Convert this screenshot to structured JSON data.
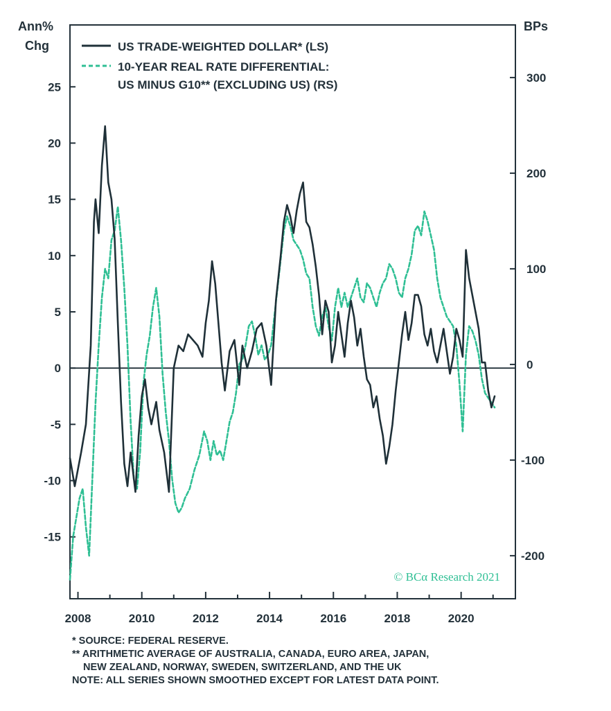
{
  "chart_data": {
    "type": "line",
    "left_axis": {
      "title_line1": "Ann%",
      "title_line2": "Chg",
      "range": [
        -20.5,
        30.5
      ],
      "ticks": [
        25,
        20,
        15,
        10,
        5,
        0,
        -5,
        -10,
        -15
      ]
    },
    "right_axis": {
      "title": "BPs",
      "range": [
        -245,
        355
      ],
      "ticks": [
        300,
        200,
        100,
        0,
        -100,
        -200
      ]
    },
    "x_axis": {
      "range": [
        2007.75,
        2021.7
      ],
      "ticks": [
        2008,
        2010,
        2012,
        2014,
        2016,
        2018,
        2020
      ]
    },
    "zero_line": true,
    "grid": false,
    "legend": {
      "position": "top-left",
      "line1": "US TRADE-WEIGHTED DOLLAR* (LS)",
      "line2a": "10-YEAR REAL RATE DIFFERENTIAL:",
      "line2b": "US MINUS G10** (EXCLUDING US) (RS)"
    },
    "credit": "© BCα Research 2021",
    "series": [
      {
        "name": "US TRADE-WEIGHTED DOLLAR* (LS)",
        "axis": "left",
        "color": "#1f3038",
        "style": "solid",
        "x": [
          2007.75,
          2007.9,
          2008.0,
          2008.1,
          2008.25,
          2008.4,
          2008.5,
          2008.55,
          2008.65,
          2008.75,
          2008.85,
          2008.95,
          2009.05,
          2009.15,
          2009.25,
          2009.35,
          2009.45,
          2009.55,
          2009.65,
          2009.8,
          2009.9,
          2010.0,
          2010.1,
          2010.2,
          2010.3,
          2010.45,
          2010.55,
          2010.7,
          2010.85,
          2011.0,
          2011.15,
          2011.3,
          2011.45,
          2011.6,
          2011.75,
          2011.9,
          2012.0,
          2012.1,
          2012.2,
          2012.3,
          2012.4,
          2012.5,
          2012.6,
          2012.75,
          2012.9,
          2013.05,
          2013.15,
          2013.3,
          2013.45,
          2013.6,
          2013.75,
          2013.9,
          2014.05,
          2014.2,
          2014.35,
          2014.45,
          2014.55,
          2014.65,
          2014.75,
          2014.85,
          2014.95,
          2015.05,
          2015.15,
          2015.25,
          2015.35,
          2015.45,
          2015.55,
          2015.65,
          2015.75,
          2015.85,
          2015.95,
          2016.05,
          2016.15,
          2016.25,
          2016.35,
          2016.45,
          2016.55,
          2016.65,
          2016.75,
          2016.85,
          2016.95,
          2017.05,
          2017.15,
          2017.25,
          2017.35,
          2017.45,
          2017.55,
          2017.65,
          2017.75,
          2017.85,
          2017.95,
          2018.05,
          2018.15,
          2018.25,
          2018.35,
          2018.45,
          2018.55,
          2018.65,
          2018.75,
          2018.85,
          2018.95,
          2019.05,
          2019.15,
          2019.25,
          2019.35,
          2019.45,
          2019.55,
          2019.65,
          2019.75,
          2019.85,
          2019.95,
          2020.05,
          2020.15,
          2020.25,
          2020.35,
          2020.45,
          2020.55,
          2020.65,
          2020.75,
          2020.85,
          2020.95,
          2021.05
        ],
        "y": [
          -8.0,
          -10.5,
          -9.0,
          -7.5,
          -5.0,
          2.0,
          13.0,
          15.0,
          12.0,
          18.0,
          21.5,
          16.5,
          15.0,
          11.5,
          4.0,
          -3.0,
          -8.5,
          -10.5,
          -7.5,
          -11.0,
          -6.0,
          -2.5,
          -1.0,
          -3.5,
          -5.0,
          -3.0,
          -5.5,
          -7.5,
          -11.0,
          0.0,
          2.0,
          1.5,
          3.0,
          2.5,
          2.0,
          1.0,
          4.0,
          6.0,
          9.5,
          7.5,
          4.0,
          0.5,
          -2.0,
          1.5,
          2.5,
          -1.5,
          2.0,
          0.0,
          1.5,
          3.5,
          4.0,
          2.0,
          -1.5,
          6.0,
          10.0,
          13.0,
          14.5,
          13.5,
          12.0,
          14.0,
          15.5,
          16.5,
          13.0,
          12.5,
          11.0,
          9.0,
          6.5,
          3.0,
          6.0,
          5.0,
          0.5,
          2.0,
          5.0,
          3.0,
          1.0,
          4.0,
          6.0,
          4.5,
          2.0,
          3.5,
          1.0,
          -1.0,
          -1.5,
          -3.5,
          -2.5,
          -4.5,
          -6.0,
          -8.5,
          -7.0,
          -5.0,
          -2.0,
          0.5,
          3.0,
          5.0,
          2.5,
          4.0,
          6.5,
          6.5,
          5.5,
          3.0,
          2.0,
          3.5,
          1.5,
          0.5,
          2.0,
          3.5,
          1.5,
          -0.5,
          1.0,
          3.5,
          2.5,
          1.0,
          10.5,
          8.0,
          6.5,
          5.0,
          3.5,
          0.5,
          0.5,
          -2.0,
          -3.5,
          -2.5
        ]
      },
      {
        "name": "10-YEAR REAL RATE DIFFERENTIAL: US MINUS G10** (EXCLUDING US) (RS)",
        "axis": "right",
        "color": "#2fbf94",
        "style": "dashed",
        "x": [
          2007.75,
          2007.85,
          2007.95,
          2008.05,
          2008.15,
          2008.25,
          2008.35,
          2008.45,
          2008.55,
          2008.65,
          2008.75,
          2008.85,
          2008.95,
          2009.05,
          2009.15,
          2009.25,
          2009.35,
          2009.45,
          2009.55,
          2009.65,
          2009.75,
          2009.85,
          2009.95,
          2010.05,
          2010.15,
          2010.25,
          2010.35,
          2010.45,
          2010.55,
          2010.65,
          2010.75,
          2010.85,
          2010.95,
          2011.05,
          2011.15,
          2011.25,
          2011.35,
          2011.5,
          2011.65,
          2011.8,
          2011.95,
          2012.05,
          2012.15,
          2012.25,
          2012.35,
          2012.45,
          2012.55,
          2012.65,
          2012.75,
          2012.85,
          2012.95,
          2013.05,
          2013.15,
          2013.25,
          2013.35,
          2013.45,
          2013.55,
          2013.65,
          2013.75,
          2013.85,
          2013.95,
          2014.05,
          2014.15,
          2014.25,
          2014.35,
          2014.45,
          2014.55,
          2014.65,
          2014.75,
          2014.85,
          2014.95,
          2015.05,
          2015.15,
          2015.25,
          2015.35,
          2015.45,
          2015.55,
          2015.65,
          2015.75,
          2015.85,
          2015.95,
          2016.05,
          2016.15,
          2016.25,
          2016.35,
          2016.45,
          2016.55,
          2016.65,
          2016.75,
          2016.85,
          2016.95,
          2017.05,
          2017.15,
          2017.25,
          2017.35,
          2017.45,
          2017.55,
          2017.65,
          2017.75,
          2017.85,
          2017.95,
          2018.05,
          2018.15,
          2018.25,
          2018.35,
          2018.45,
          2018.55,
          2018.65,
          2018.75,
          2018.85,
          2018.95,
          2019.05,
          2019.15,
          2019.25,
          2019.35,
          2019.45,
          2019.55,
          2019.65,
          2019.75,
          2019.85,
          2019.95,
          2020.05,
          2020.15,
          2020.25,
          2020.35,
          2020.45,
          2020.55,
          2020.65,
          2020.75,
          2020.85,
          2020.95,
          2021.05
        ],
        "y": [
          -225,
          -180,
          -160,
          -140,
          -130,
          -170,
          -200,
          -120,
          -40,
          20,
          70,
          100,
          90,
          130,
          140,
          165,
          130,
          80,
          20,
          -60,
          -120,
          -130,
          -90,
          -20,
          10,
          30,
          60,
          80,
          50,
          -10,
          -50,
          -80,
          -120,
          -145,
          -155,
          -150,
          -140,
          -130,
          -110,
          -95,
          -70,
          -80,
          -100,
          -80,
          -95,
          -90,
          -100,
          -80,
          -60,
          -50,
          -30,
          0,
          5,
          20,
          40,
          45,
          30,
          10,
          20,
          5,
          10,
          20,
          50,
          80,
          110,
          140,
          155,
          145,
          130,
          125,
          120,
          110,
          95,
          90,
          60,
          40,
          30,
          50,
          60,
          40,
          25,
          60,
          80,
          60,
          75,
          60,
          70,
          80,
          90,
          70,
          65,
          85,
          80,
          70,
          60,
          75,
          85,
          90,
          105,
          100,
          90,
          75,
          70,
          90,
          100,
          115,
          140,
          145,
          135,
          160,
          150,
          135,
          120,
          90,
          70,
          60,
          50,
          45,
          40,
          20,
          -20,
          -70,
          10,
          40,
          35,
          25,
          10,
          -15,
          -30,
          -35,
          -40,
          -45
        ]
      }
    ]
  },
  "footnotes": {
    "line1": "*  SOURCE: FEDERAL RESERVE.",
    "line2": "** ARITHMETIC AVERAGE OF AUSTRALIA, CANADA, EURO AREA, JAPAN,",
    "line3": "NEW ZEALAND, NORWAY, SWEDEN, SWITZERLAND, AND THE UK",
    "line4": "NOTE: ALL SERIES SHOWN SMOOTHED EXCEPT FOR LATEST DATA POINT."
  }
}
